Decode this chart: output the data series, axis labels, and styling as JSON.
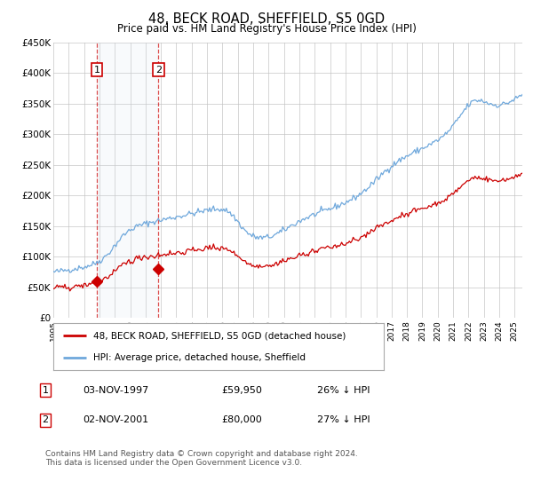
{
  "title": "48, BECK ROAD, SHEFFIELD, S5 0GD",
  "subtitle": "Price paid vs. HM Land Registry's House Price Index (HPI)",
  "legend_line1": "48, BECK ROAD, SHEFFIELD, S5 0GD (detached house)",
  "legend_line2": "HPI: Average price, detached house, Sheffield",
  "transaction1_date": "03-NOV-1997",
  "transaction1_price": "£59,950",
  "transaction1_hpi": "26% ↓ HPI",
  "transaction1_year": 1997.84,
  "transaction1_value": 59950,
  "transaction2_date": "02-NOV-2001",
  "transaction2_price": "£80,000",
  "transaction2_hpi": "27% ↓ HPI",
  "transaction2_year": 2001.84,
  "transaction2_value": 80000,
  "hpi_color": "#6fa8dc",
  "price_color": "#cc0000",
  "vline_color": "#cc0000",
  "shade_color": "#dce6f1",
  "dot_color": "#cc0000",
  "grid_color": "#c0c0c0",
  "background_color": "#ffffff",
  "ylim": [
    0,
    450000
  ],
  "xlim_start": 1995.0,
  "xlim_end": 2025.5,
  "footer": "Contains HM Land Registry data © Crown copyright and database right 2024.\nThis data is licensed under the Open Government Licence v3.0."
}
